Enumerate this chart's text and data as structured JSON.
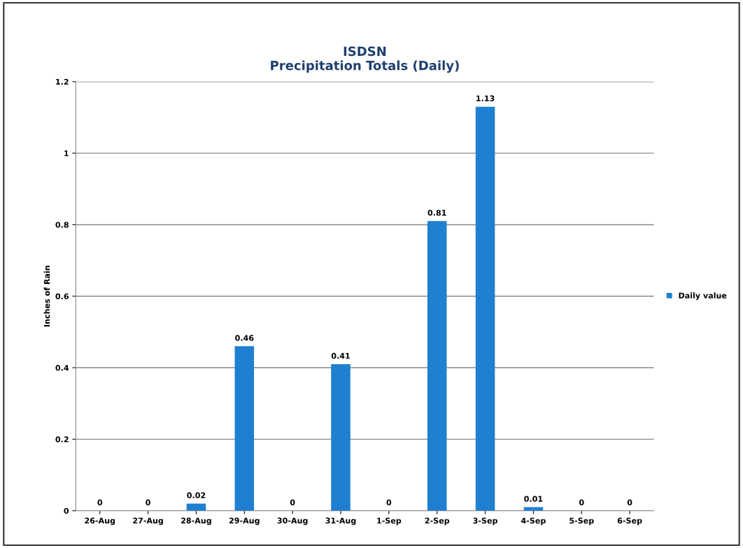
{
  "chart_data": {
    "type": "bar",
    "title": "ISDSN\nPrecipitation Totals (Daily)",
    "ylabel": "Inches of Rain",
    "categories": [
      "26-Aug",
      "27-Aug",
      "28-Aug",
      "29-Aug",
      "30-Aug",
      "31-Aug",
      "1-Sep",
      "2-Sep",
      "3-Sep",
      "4-Sep",
      "5-Sep",
      "6-Sep"
    ],
    "series": [
      {
        "name": "Daily value",
        "color": "#1f7fd0",
        "values": [
          0,
          0,
          0.02,
          0.46,
          0,
          0.41,
          0,
          0.81,
          1.13,
          0.01,
          0,
          0
        ]
      }
    ],
    "ylim": [
      0,
      1.2
    ],
    "yticks": [
      0,
      0.2,
      0.4,
      0.6,
      0.8,
      1,
      1.2
    ],
    "grid": "y",
    "legend": "right",
    "data_labels": true
  }
}
